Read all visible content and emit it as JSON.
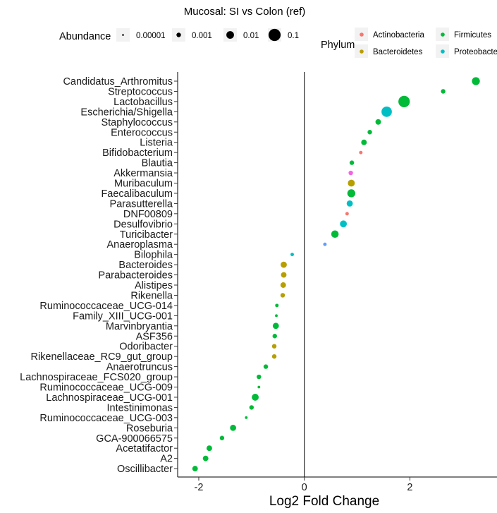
{
  "chart_data": {
    "type": "scatter",
    "title": "Mucosal: SI vs Colon (ref)",
    "xlabel": "Log2 Fold Change",
    "ylabel": "",
    "xlim": [
      -2.4,
      3.65
    ],
    "x_ticks": [
      -2,
      0,
      2
    ],
    "grid": false,
    "legend_position": "top",
    "size_legend": {
      "title": "Abundance",
      "levels": [
        {
          "label": "0.00001",
          "value": 1e-05
        },
        {
          "label": "0.001",
          "value": 0.001
        },
        {
          "label": "0.01",
          "value": 0.01
        },
        {
          "label": "0.1",
          "value": 0.1
        }
      ]
    },
    "color_legend": {
      "title": "Phylum",
      "entries": [
        {
          "name": "Actinobacteria",
          "color": "#f8766d"
        },
        {
          "name": "Firmicutes",
          "color": "#00ba38"
        },
        {
          "name": "Bacteroidetes",
          "color": "#b79f00"
        },
        {
          "name": "Proteobacteria",
          "color": "#00bfc4"
        }
      ]
    },
    "points": [
      {
        "genus": "Candidatus_Arthromitus",
        "x": 3.25,
        "abundance": 0.01,
        "color": "#00ba38"
      },
      {
        "genus": "Streptococcus",
        "x": 2.63,
        "abundance": 0.001,
        "color": "#00ba38"
      },
      {
        "genus": "Lactobacillus",
        "x": 1.89,
        "abundance": 0.1,
        "color": "#00ba38"
      },
      {
        "genus": "Escherichia/Shigella",
        "x": 1.56,
        "abundance": 0.05,
        "color": "#00bfc4"
      },
      {
        "genus": "Staphylococcus",
        "x": 1.4,
        "abundance": 0.002,
        "color": "#00ba38"
      },
      {
        "genus": "Enterococcus",
        "x": 1.24,
        "abundance": 0.001,
        "color": "#00ba38"
      },
      {
        "genus": "Listeria",
        "x": 1.13,
        "abundance": 0.002,
        "color": "#00ba38"
      },
      {
        "genus": "Bifidobacterium",
        "x": 1.07,
        "abundance": 0.0005,
        "color": "#f8766d"
      },
      {
        "genus": "Blautia",
        "x": 0.9,
        "abundance": 0.001,
        "color": "#00ba38"
      },
      {
        "genus": "Akkermansia",
        "x": 0.88,
        "abundance": 0.001,
        "color": "#f564e3"
      },
      {
        "genus": "Muribaculum",
        "x": 0.89,
        "abundance": 0.005,
        "color": "#b79f00"
      },
      {
        "genus": "Faecalibaculum",
        "x": 0.89,
        "abundance": 0.01,
        "color": "#00ba38"
      },
      {
        "genus": "Parasutterella",
        "x": 0.86,
        "abundance": 0.003,
        "color": "#00bfc4"
      },
      {
        "genus": "DNF00809",
        "x": 0.81,
        "abundance": 0.0005,
        "color": "#f8766d"
      },
      {
        "genus": "Desulfovibrio",
        "x": 0.74,
        "abundance": 0.005,
        "color": "#00bfc4"
      },
      {
        "genus": "Turicibacter",
        "x": 0.58,
        "abundance": 0.007,
        "color": "#00ba38"
      },
      {
        "genus": "Anaeroplasma",
        "x": 0.39,
        "abundance": 0.0005,
        "color": "#619cff"
      },
      {
        "genus": "Bilophila",
        "x": -0.23,
        "abundance": 0.0005,
        "color": "#00bfc4"
      },
      {
        "genus": "Bacteroides",
        "x": -0.39,
        "abundance": 0.003,
        "color": "#b79f00"
      },
      {
        "genus": "Parabacteroides",
        "x": -0.39,
        "abundance": 0.002,
        "color": "#b79f00"
      },
      {
        "genus": "Alistipes",
        "x": -0.4,
        "abundance": 0.002,
        "color": "#b79f00"
      },
      {
        "genus": "Rikenella",
        "x": -0.41,
        "abundance": 0.001,
        "color": "#b79f00"
      },
      {
        "genus": "Ruminococcaceae_UCG-014",
        "x": -0.52,
        "abundance": 0.0005,
        "color": "#00ba38"
      },
      {
        "genus": "Family_XIII_UCG-001",
        "x": -0.53,
        "abundance": 0.0003,
        "color": "#00ba38"
      },
      {
        "genus": "Marvinbryantia",
        "x": -0.54,
        "abundance": 0.003,
        "color": "#00ba38"
      },
      {
        "genus": "ASF356",
        "x": -0.56,
        "abundance": 0.001,
        "color": "#00ba38"
      },
      {
        "genus": "Odoribacter",
        "x": -0.57,
        "abundance": 0.001,
        "color": "#b79f00"
      },
      {
        "genus": "Rikenellaceae_RC9_gut_group",
        "x": -0.57,
        "abundance": 0.001,
        "color": "#b79f00"
      },
      {
        "genus": "Anaerotruncus",
        "x": -0.73,
        "abundance": 0.001,
        "color": "#00ba38"
      },
      {
        "genus": "Lachnospiraceae_FCS020_group",
        "x": -0.86,
        "abundance": 0.001,
        "color": "#00ba38"
      },
      {
        "genus": "Ruminococcaceae_UCG-009",
        "x": -0.86,
        "abundance": 0.0003,
        "color": "#00ba38"
      },
      {
        "genus": "Lachnospiraceae_UCG-001",
        "x": -0.93,
        "abundance": 0.005,
        "color": "#00ba38"
      },
      {
        "genus": "Intestinimonas",
        "x": -1.0,
        "abundance": 0.001,
        "color": "#00ba38"
      },
      {
        "genus": "Ruminococcaceae_UCG-003",
        "x": -1.1,
        "abundance": 0.0003,
        "color": "#00ba38"
      },
      {
        "genus": "Roseburia",
        "x": -1.35,
        "abundance": 0.003,
        "color": "#00ba38"
      },
      {
        "genus": "GCA-900066575",
        "x": -1.56,
        "abundance": 0.001,
        "color": "#00ba38"
      },
      {
        "genus": "Acetatifactor",
        "x": -1.8,
        "abundance": 0.002,
        "color": "#00ba38"
      },
      {
        "genus": "A2",
        "x": -1.87,
        "abundance": 0.002,
        "color": "#00ba38"
      },
      {
        "genus": "Oscillibacter",
        "x": -2.07,
        "abundance": 0.002,
        "color": "#00ba38"
      }
    ]
  }
}
